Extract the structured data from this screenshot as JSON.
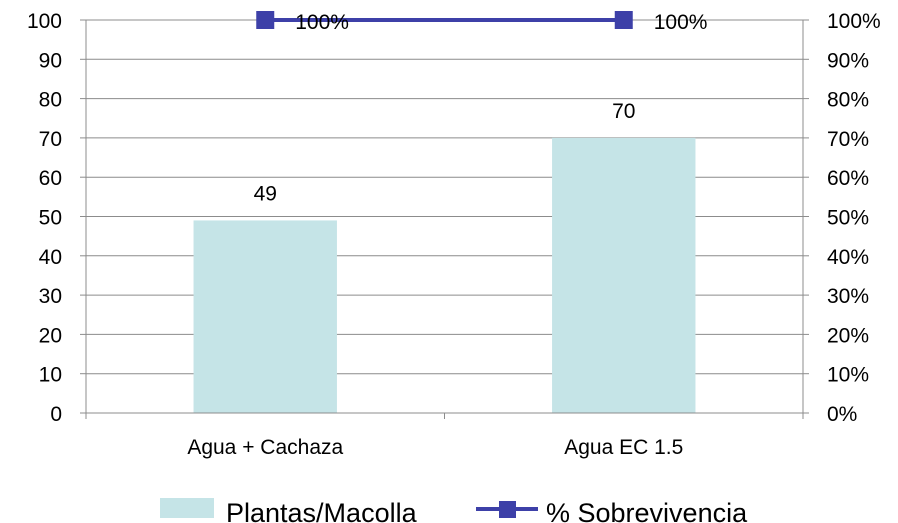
{
  "chart_data": {
    "type": "bar",
    "categories": [
      "Agua + Cachaza",
      "Agua EC 1.5"
    ],
    "series": [
      {
        "name": "Plantas/Macolla",
        "type": "bar",
        "axis": "left",
        "values": [
          49,
          70
        ],
        "data_labels": [
          "49",
          "70"
        ],
        "color": "#c5e4e7"
      },
      {
        "name": "% Sobrevivencia",
        "type": "line",
        "axis": "right",
        "values": [
          100,
          100
        ],
        "data_labels": [
          "100%",
          "100%"
        ],
        "color": "#3d40a8"
      }
    ],
    "y_left": {
      "ylim": [
        0,
        100
      ],
      "ticks": [
        "0",
        "10",
        "20",
        "30",
        "40",
        "50",
        "60",
        "70",
        "80",
        "90",
        "100"
      ]
    },
    "y_right": {
      "ylim": [
        0,
        100
      ],
      "ticks": [
        "0%",
        "10%",
        "20%",
        "30%",
        "40%",
        "50%",
        "60%",
        "70%",
        "80%",
        "90%",
        "100%"
      ]
    },
    "grid": true,
    "legend_position": "bottom",
    "legend": [
      "Plantas/Macolla",
      "% Sobrevivencia"
    ]
  }
}
